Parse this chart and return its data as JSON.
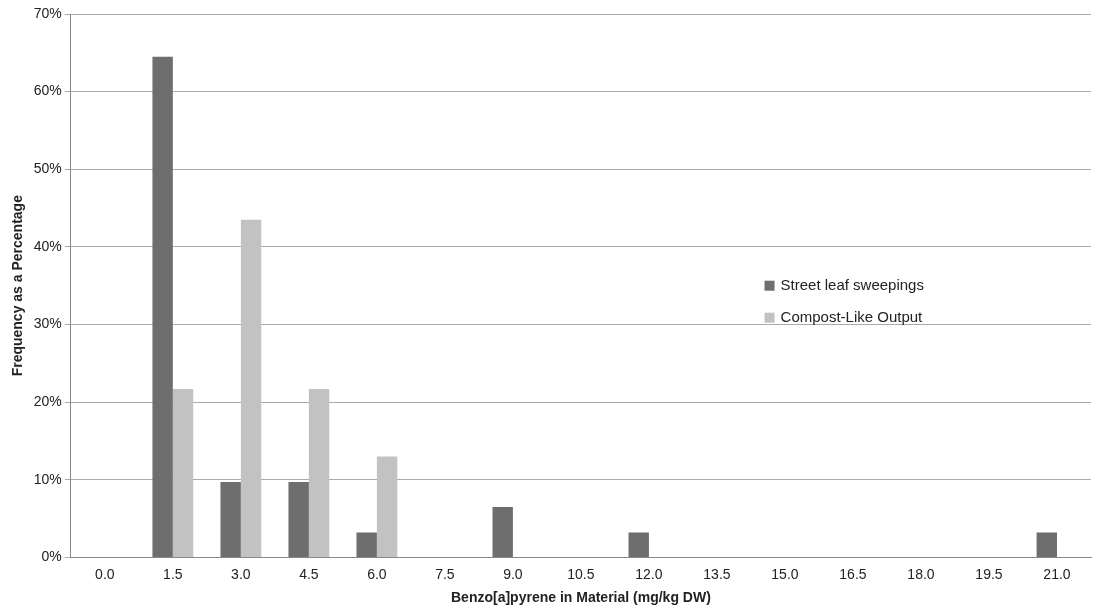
{
  "chart_data": {
    "type": "bar",
    "xlabel": "Benzo[a]pyrene in Material (mg/kg DW)",
    "ylabel": "Frequency as a Percentage",
    "categories": [
      "0.0",
      "1.5",
      "3.0",
      "4.5",
      "6.0",
      "7.5",
      "9.0",
      "10.5",
      "12.0",
      "13.5",
      "15.0",
      "16.5",
      "18.0",
      "19.5",
      "21.0"
    ],
    "series": [
      {
        "name": "Street leaf sweepings",
        "color": "#6e6e6e",
        "values": [
          0,
          64.5,
          9.7,
          9.7,
          3.2,
          0,
          6.5,
          0,
          3.2,
          0,
          0,
          0,
          0,
          0,
          3.2
        ]
      },
      {
        "name": "Compost-Like Output",
        "color": "#c2c2c2",
        "values": [
          0,
          21.7,
          43.5,
          21.7,
          13.0,
          0,
          0,
          0,
          0,
          0,
          0,
          0,
          0,
          0,
          0
        ]
      }
    ],
    "ylim": [
      0,
      70
    ],
    "yticks": [
      {
        "value": 0,
        "label": "0%"
      },
      {
        "value": 10,
        "label": "10%"
      },
      {
        "value": 20,
        "label": "20%"
      },
      {
        "value": 30,
        "label": "30%"
      },
      {
        "value": 40,
        "label": "40%"
      },
      {
        "value": 50,
        "label": "50%"
      },
      {
        "value": 60,
        "label": "60%"
      },
      {
        "value": 70,
        "label": "70%"
      }
    ],
    "grid": "y",
    "legend": "right"
  }
}
